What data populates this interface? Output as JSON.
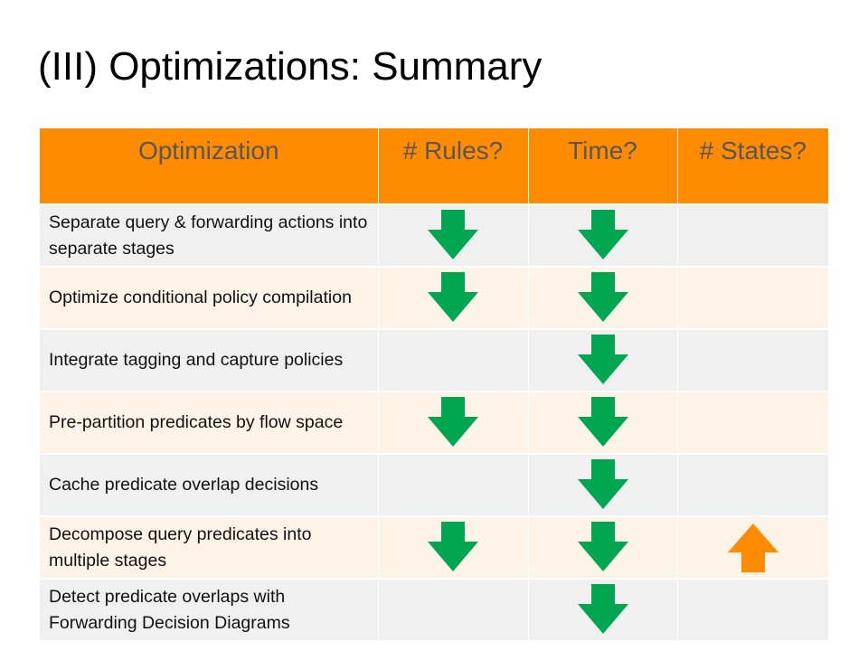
{
  "title": "(III) Optimizations: Summary",
  "columns": [
    "Optimization",
    "# Rules?",
    "Time?",
    "# States?"
  ],
  "colors": {
    "header": "#ff8b00",
    "down_arrow": "#00a651",
    "up_arrow": "#ff8b00"
  },
  "rows": [
    {
      "name": "Separate query & forwarding actions into separate stages",
      "rules": "down",
      "time": "down",
      "states": "none"
    },
    {
      "name": "Optimize conditional policy compilation",
      "rules": "down",
      "time": "down",
      "states": "none"
    },
    {
      "name": "Integrate tagging and capture policies",
      "rules": "none",
      "time": "down",
      "states": "none"
    },
    {
      "name": "Pre-partition predicates by flow space",
      "rules": "down",
      "time": "down",
      "states": "none"
    },
    {
      "name": "Cache predicate overlap decisions",
      "rules": "none",
      "time": "down",
      "states": "none"
    },
    {
      "name": "Decompose query predicates into multiple stages",
      "rules": "down",
      "time": "down",
      "states": "up"
    },
    {
      "name": "Detect predicate overlaps with Forwarding Decision Diagrams",
      "rules": "none",
      "time": "down",
      "states": "none"
    }
  ]
}
